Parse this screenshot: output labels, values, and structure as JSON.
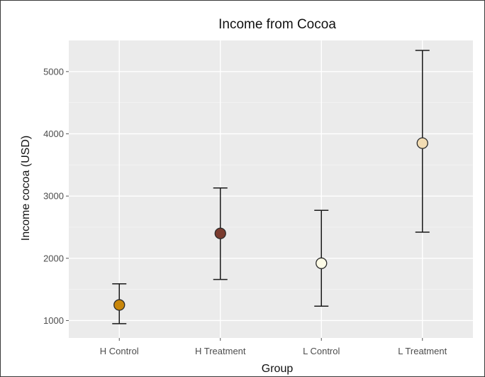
{
  "chart_data": {
    "type": "scatter",
    "title": "Income from Cocoa",
    "xlabel": "Group",
    "ylabel": "Income cocoa (USD)",
    "categories": [
      "H Control",
      "H Treatment",
      "L Control",
      "L Treatment"
    ],
    "ylim": [
      720,
      5500
    ],
    "yticks": [
      1000,
      2000,
      3000,
      4000,
      5000
    ],
    "grid": true,
    "legend": "none",
    "points": [
      {
        "category": "H Control",
        "mean": 1250,
        "lower": 950,
        "upper": 1590,
        "color": "#c8860a"
      },
      {
        "category": "H Treatment",
        "mean": 2400,
        "lower": 1660,
        "upper": 3130,
        "color": "#7a3b2e"
      },
      {
        "category": "L Control",
        "mean": 1920,
        "lower": 1230,
        "upper": 2770,
        "color": "#fdfbe6"
      },
      {
        "category": "L Treatment",
        "mean": 3850,
        "lower": 2420,
        "upper": 5340,
        "color": "#f2dcb3"
      }
    ]
  }
}
